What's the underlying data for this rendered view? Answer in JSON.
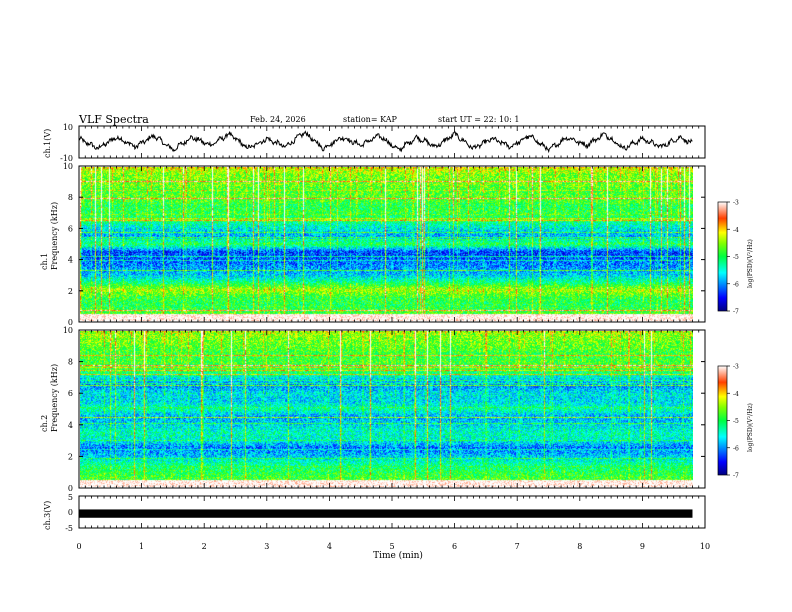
{
  "header": {
    "title": "VLF Spectra",
    "date": "Feb. 24, 2026",
    "station": "station= KAP",
    "start": "start  UT  =   22: 10: 1"
  },
  "colors": {
    "spectrum": [
      "#00007f",
      "#0000ff",
      "#0080ff",
      "#00ffff",
      "#00ff80",
      "#80ff00",
      "#ffff00",
      "#ff8000",
      "#ff0000",
      "#7f0000"
    ],
    "trace": "#000000",
    "frame": "#000000"
  },
  "chart_data": [
    {
      "type": "line",
      "name": "ch1-waveform",
      "ylabel": "ch.1(V)",
      "ylim": [
        -10,
        10
      ],
      "yticks": [
        "10",
        "-10"
      ],
      "xlim": [
        0,
        10
      ],
      "description_note": "Oscillating voltage trace, ~16 cycles over 9.8 min",
      "x": [
        0,
        0.3,
        0.6,
        0.9,
        1.2,
        1.5,
        1.8,
        2.1,
        2.4,
        2.7,
        3.0,
        3.3,
        3.6,
        3.9,
        4.2,
        4.5,
        4.8,
        5.1,
        5.4,
        5.7,
        6.0,
        6.3,
        6.6,
        6.9,
        7.2,
        7.5,
        7.8,
        8.1,
        8.4,
        8.7,
        9.0,
        9.3,
        9.6,
        9.8
      ],
      "y": [
        2,
        -4,
        3,
        -3,
        4,
        -5,
        3,
        -2,
        5,
        -4,
        2,
        -3,
        6,
        -4,
        3,
        -2,
        4,
        -5,
        3,
        -3,
        5,
        -4,
        2,
        -3,
        4,
        -5,
        3,
        -2,
        5,
        -4,
        2,
        -3,
        3,
        -1
      ]
    },
    {
      "type": "heatmap",
      "name": "ch1-spectrogram",
      "ylabel": "ch.1\nFrequency (kHz)",
      "ylabel_lines": [
        "ch.1",
        "Frequency  (kHz)"
      ],
      "xlim": [
        0,
        9.8
      ],
      "ylim": [
        0,
        10
      ],
      "yticks": [
        "0",
        "2",
        "4",
        "6",
        "8",
        "10"
      ],
      "band_profile_kHz": [
        0,
        0.5,
        1,
        1.5,
        2,
        2.5,
        3,
        3.5,
        4,
        4.5,
        5,
        5.5,
        6,
        6.5,
        7,
        7.5,
        8,
        8.5,
        9,
        9.5,
        10
      ],
      "band_level_log": [
        -4.5,
        -4.8,
        -5.0,
        -4.9,
        -4.4,
        -5.2,
        -5.8,
        -6.0,
        -6.2,
        -6.3,
        -5.0,
        -5.9,
        -5.6,
        -5.2,
        -4.9,
        -5.0,
        -4.7,
        -4.8,
        -4.6,
        -4.6,
        -4.2
      ],
      "colorbar": {
        "label": "log(PSD)(V²/Hz)",
        "ticks": [
          "-3",
          "-4",
          "-5",
          "-6",
          "-7"
        ],
        "range": [
          -7,
          -3
        ]
      }
    },
    {
      "type": "heatmap",
      "name": "ch2-spectrogram",
      "ylabel_lines": [
        "ch.2",
        "Frequency  (kHz)"
      ],
      "xlim": [
        0,
        9.8
      ],
      "ylim": [
        0,
        10
      ],
      "yticks": [
        "0",
        "2",
        "4",
        "6",
        "8",
        "10"
      ],
      "band_profile_kHz": [
        0,
        0.5,
        1,
        1.5,
        2,
        2.5,
        3,
        3.5,
        4,
        4.5,
        5,
        5.5,
        6,
        6.5,
        7,
        7.5,
        8,
        8.5,
        9,
        9.5,
        10
      ],
      "band_level_log": [
        -4.6,
        -4.8,
        -5.0,
        -5.3,
        -5.8,
        -6.1,
        -5.5,
        -5.4,
        -5.7,
        -5.9,
        -5.3,
        -5.7,
        -5.6,
        -6.0,
        -5.6,
        -4.9,
        -4.8,
        -4.9,
        -4.7,
        -4.6,
        -4.4
      ],
      "colorbar": {
        "label": "log(PSD)(V²/Hz)",
        "ticks": [
          "-3",
          "-4",
          "-5",
          "-6",
          "-7"
        ],
        "range": [
          -7,
          -3
        ]
      }
    },
    {
      "type": "line",
      "name": "ch3-waveform",
      "ylabel": "ch.3(V)",
      "ylim": [
        -5,
        5
      ],
      "yticks": [
        "5",
        "0",
        "-5"
      ],
      "xlim": [
        0,
        10
      ],
      "x": [
        0,
        9.8
      ],
      "y": [
        -0.5,
        -0.5
      ],
      "band_halfwidth_V": 0.5
    }
  ],
  "xaxis": {
    "label": "Time  (min)",
    "ticks": [
      "0",
      "1",
      "2",
      "3",
      "4",
      "5",
      "6",
      "7",
      "8",
      "9",
      "10"
    ],
    "range": [
      0,
      10
    ]
  }
}
